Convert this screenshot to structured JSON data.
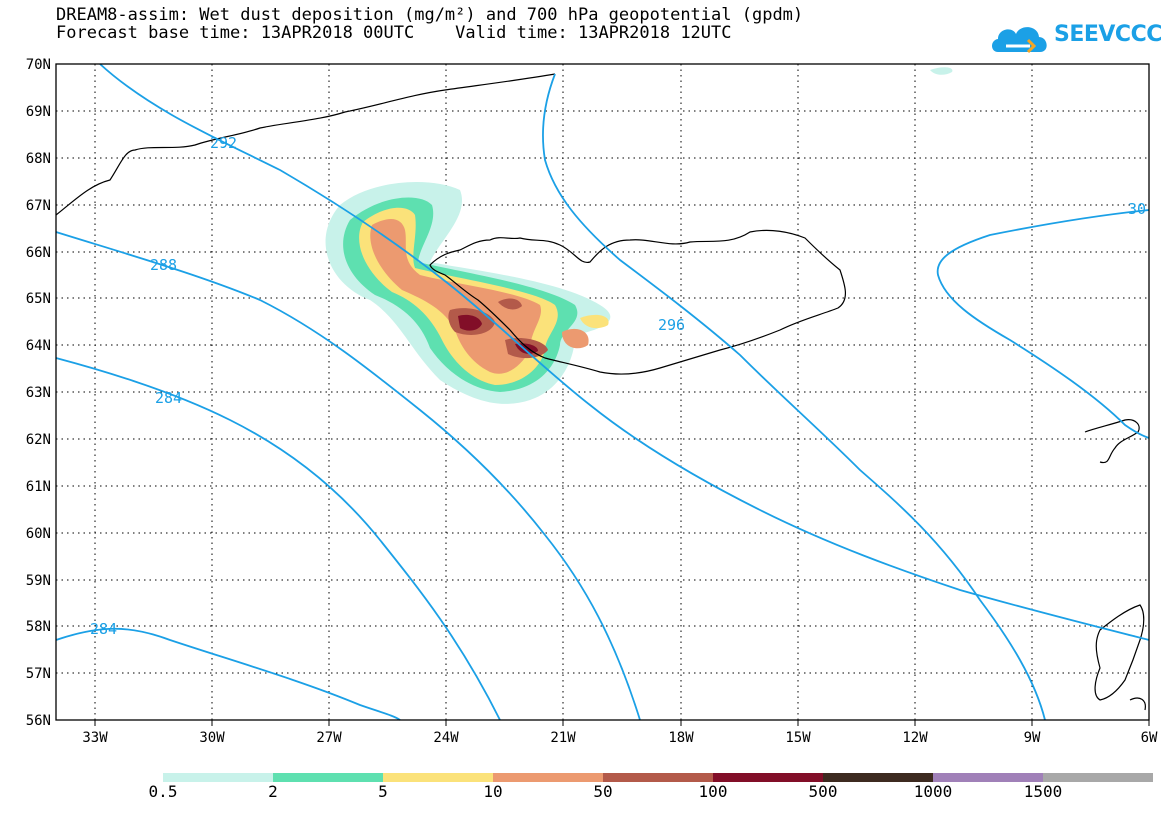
{
  "title": {
    "line1": "DREAM8-assim: Wet dust deposition (mg/m²) and 700 hPa geopotential (gpdm)",
    "line2": "Forecast base time: 13APR2018 00UTC    Valid time: 13APR2018 12UTC"
  },
  "logo": {
    "text": "SEEVCCC",
    "icon": "cloud-icon"
  },
  "axes": {
    "lon_labels": [
      "33W",
      "30W",
      "27W",
      "24W",
      "21W",
      "18W",
      "15W",
      "12W",
      "9W",
      "6W"
    ],
    "lat_labels": [
      "70N",
      "69N",
      "68N",
      "67N",
      "66N",
      "65N",
      "64N",
      "63N",
      "62N",
      "61N",
      "60N",
      "59N",
      "58N",
      "57N",
      "56N"
    ],
    "lon_range": [
      -34.5,
      -6
    ],
    "lat_range": [
      56,
      70
    ],
    "grid": "dotted"
  },
  "contour_labels": [
    "292",
    "288",
    "284",
    "296",
    "284",
    "30"
  ],
  "legend": {
    "colors": [
      "#c8f2ea",
      "#5ee0b0",
      "#fbe27a",
      "#ec9a70",
      "#b35a4a",
      "#820e28",
      "#3d2a20",
      "#a080b8",
      "#a8a8a8"
    ],
    "labels": [
      "0.5",
      "2",
      "5",
      "10",
      "50",
      "100",
      "500",
      "1000",
      "1500"
    ]
  },
  "colors": {
    "contour": "#1ba0e6",
    "coast": "#000000"
  }
}
